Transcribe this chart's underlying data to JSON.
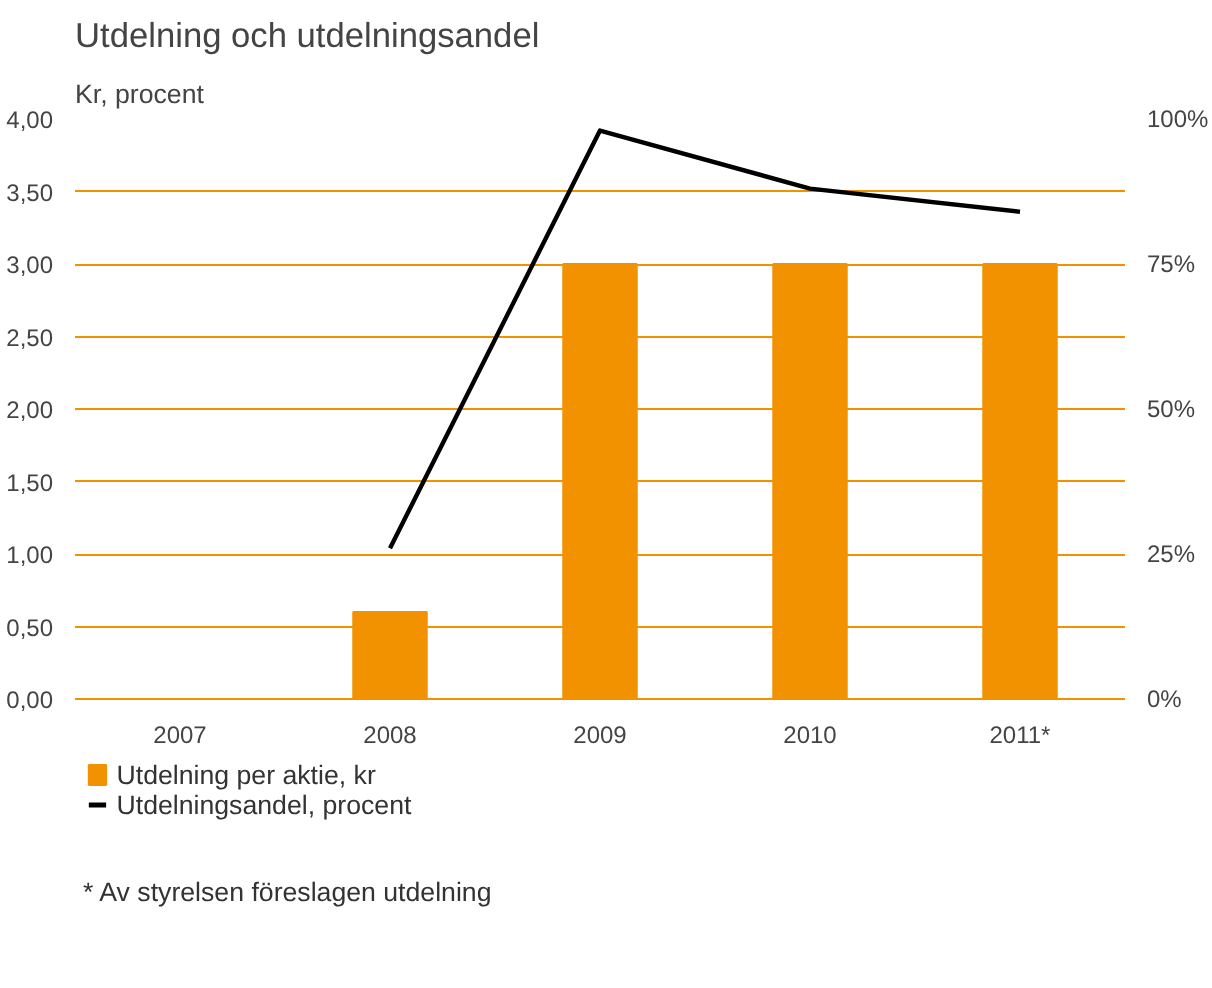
{
  "chart_data": {
    "type": "bar",
    "title": "Utdelning och utdelningsandel",
    "subtitle": "Kr, procent",
    "categories": [
      "2007",
      "2008",
      "2009",
      "2010",
      "2011*"
    ],
    "series": [
      {
        "name": "Utdelning per aktie, kr",
        "color": "#f39200",
        "values": [
          null,
          0.6,
          3.0,
          3.0,
          3.0
        ]
      },
      {
        "name": "Utdelningsandel, procent",
        "type": "line",
        "color": "#000000",
        "axis": "y2",
        "values": [
          null,
          26,
          98,
          88,
          84
        ]
      }
    ],
    "ylim": [
      0,
      4
    ],
    "yticks": [
      {
        "value": 0,
        "label": "0,00"
      },
      {
        "value": 0.5,
        "label": "0,50"
      },
      {
        "value": 1,
        "label": "1,00"
      },
      {
        "value": 1.5,
        "label": "1,50"
      },
      {
        "value": 2,
        "label": "2,00"
      },
      {
        "value": 2.5,
        "label": "2,50"
      },
      {
        "value": 3,
        "label": "3,00"
      },
      {
        "value": 3.5,
        "label": "3,50"
      },
      {
        "value": 4,
        "label": "4,00"
      }
    ],
    "y2lim": [
      0,
      100
    ],
    "y2ticks": [
      {
        "value": 0,
        "label": "0%"
      },
      {
        "value": 25,
        "label": "25%"
      },
      {
        "value": 50,
        "label": "50%"
      },
      {
        "value": 75,
        "label": "75%"
      },
      {
        "value": 100,
        "label": "100%"
      }
    ],
    "grid": "y",
    "legend": "bottom",
    "marker": "none",
    "line_style": "solid",
    "annotations": [
      "*  Av styrelsen föreslagen utdelning"
    ]
  }
}
